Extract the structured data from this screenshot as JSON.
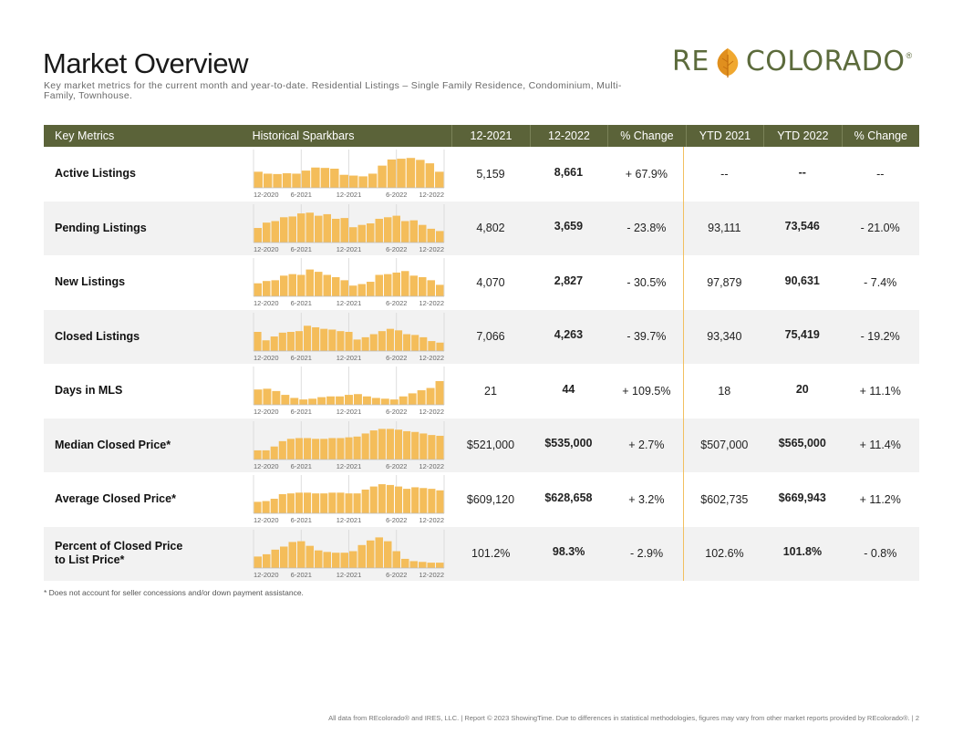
{
  "header": {
    "title": "Market Overview",
    "subtitle": "Key market metrics for the current month and year-to-date. Residential Listings – Single Family Residence, Condominium, Multi-Family, Townhouse.",
    "logo_left": "RE",
    "logo_right": "COLORADO",
    "logo_reg": "®"
  },
  "colors": {
    "header_bg": "#5b6339",
    "bar": "#f4bd5a",
    "divider": "#f2c060",
    "logo": "#5c6b3c",
    "alt_row": "#f2f2f2"
  },
  "columns": [
    "Key Metrics",
    "Historical Sparkbars",
    "12-2021",
    "12-2022",
    "% Change",
    "YTD 2021",
    "YTD 2022",
    "% Change"
  ],
  "spark_axis": [
    "12-2020",
    "6-2021",
    "12-2021",
    "6-2022",
    "12-2022"
  ],
  "rows": [
    {
      "metric": "Active Listings",
      "m2021": "5,159",
      "m2022": "8,661",
      "mchg": "+ 67.9%",
      "y2021": "--",
      "y2022": "--",
      "ychg": "--",
      "spark": [
        0.42,
        0.37,
        0.36,
        0.38,
        0.37,
        0.45,
        0.53,
        0.52,
        0.5,
        0.34,
        0.32,
        0.3,
        0.37,
        0.58,
        0.74,
        0.76,
        0.78,
        0.73,
        0.64,
        0.42
      ]
    },
    {
      "metric": "Pending Listings",
      "m2021": "4,802",
      "m2022": "3,659",
      "mchg": "- 23.8%",
      "y2021": "93,111",
      "y2022": "73,546",
      "ychg": "- 21.0%",
      "spark": [
        0.38,
        0.52,
        0.56,
        0.66,
        0.68,
        0.76,
        0.78,
        0.7,
        0.74,
        0.62,
        0.64,
        0.4,
        0.46,
        0.5,
        0.62,
        0.66,
        0.7,
        0.56,
        0.58,
        0.46,
        0.36,
        0.3
      ]
    },
    {
      "metric": "New Listings",
      "m2021": "4,070",
      "m2022": "2,827",
      "mchg": "- 30.5%",
      "y2021": "97,879",
      "y2022": "90,631",
      "ychg": "- 7.4%",
      "spark": [
        0.34,
        0.4,
        0.42,
        0.54,
        0.58,
        0.56,
        0.7,
        0.64,
        0.56,
        0.5,
        0.42,
        0.28,
        0.32,
        0.38,
        0.56,
        0.58,
        0.62,
        0.66,
        0.54,
        0.5,
        0.42,
        0.3
      ]
    },
    {
      "metric": "Closed Listings",
      "m2021": "7,066",
      "m2022": "4,263",
      "mchg": "- 39.7%",
      "y2021": "93,340",
      "y2022": "75,419",
      "ychg": "- 19.2%",
      "spark": [
        0.5,
        0.28,
        0.38,
        0.48,
        0.5,
        0.52,
        0.66,
        0.62,
        0.58,
        0.56,
        0.52,
        0.5,
        0.3,
        0.36,
        0.44,
        0.52,
        0.58,
        0.54,
        0.44,
        0.42,
        0.36,
        0.26,
        0.22
      ]
    },
    {
      "metric": "Days in MLS",
      "m2021": "21",
      "m2022": "44",
      "mchg": "+ 109.5%",
      "y2021": "18",
      "y2022": "20",
      "ychg": "+ 11.1%",
      "spark": [
        0.4,
        0.42,
        0.36,
        0.26,
        0.18,
        0.14,
        0.16,
        0.2,
        0.22,
        0.22,
        0.26,
        0.28,
        0.22,
        0.18,
        0.16,
        0.14,
        0.22,
        0.3,
        0.38,
        0.44,
        0.62
      ]
    },
    {
      "metric": "Median Closed Price*",
      "m2021": "$521,000",
      "m2022": "$535,000",
      "mchg": "+ 2.7%",
      "y2021": "$507,000",
      "y2022": "$565,000",
      "ychg": "+ 11.4%",
      "spark": [
        0.24,
        0.24,
        0.34,
        0.48,
        0.54,
        0.56,
        0.56,
        0.54,
        0.54,
        0.56,
        0.56,
        0.58,
        0.6,
        0.68,
        0.76,
        0.8,
        0.8,
        0.78,
        0.74,
        0.72,
        0.68,
        0.64,
        0.62
      ]
    },
    {
      "metric": "Average Closed Price*",
      "m2021": "$609,120",
      "m2022": "$628,658",
      "mchg": "+ 3.2%",
      "y2021": "$602,735",
      "y2022": "$669,943",
      "ychg": "+ 11.2%",
      "spark": [
        0.3,
        0.32,
        0.38,
        0.5,
        0.52,
        0.54,
        0.54,
        0.52,
        0.52,
        0.54,
        0.54,
        0.52,
        0.52,
        0.62,
        0.7,
        0.76,
        0.74,
        0.7,
        0.64,
        0.68,
        0.66,
        0.64,
        0.6
      ]
    },
    {
      "metric": "Percent of Closed Price to List Price*",
      "m2021": "101.2%",
      "m2022": "98.3%",
      "mchg": "- 2.9%",
      "y2021": "102.6%",
      "y2022": "101.8%",
      "ychg": "- 0.8%",
      "spark": [
        0.3,
        0.36,
        0.48,
        0.56,
        0.68,
        0.7,
        0.58,
        0.46,
        0.42,
        0.4,
        0.4,
        0.44,
        0.6,
        0.72,
        0.8,
        0.7,
        0.44,
        0.24,
        0.18,
        0.16,
        0.14,
        0.14
      ]
    }
  ],
  "footnote": "* Does not account for seller concessions and/or down payment assistance.",
  "footer": "All data from REcolorado® and IRES, LLC. | Report © 2023 ShowingTime. Due to differences in statistical methodologies, figures may vary from other market reports provided by REcolorado®.  |  2"
}
